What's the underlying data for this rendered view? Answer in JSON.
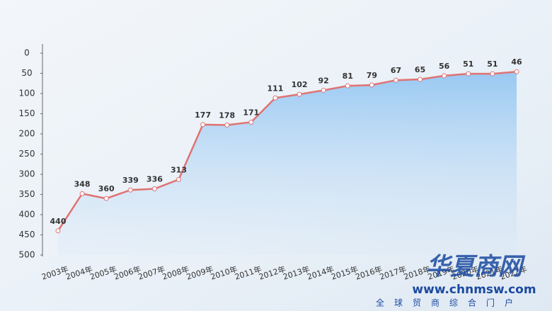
{
  "chart_data": {
    "type": "line",
    "categories": [
      "2003年",
      "2004年",
      "2005年",
      "2006年",
      "2007年",
      "2008年",
      "2009年",
      "2010年",
      "2011年",
      "2012年",
      "2013年",
      "2014年",
      "2015年",
      "2016年",
      "2017年",
      "2018年",
      "2019年",
      "2020年",
      "2021年",
      "2022年"
    ],
    "series": [
      {
        "color": "#e07272",
        "values": [
          440,
          348,
          360,
          339,
          336,
          313,
          177,
          178,
          171,
          111,
          102,
          92,
          81,
          79,
          67,
          65,
          56,
          51,
          51,
          46
        ]
      }
    ],
    "ylim": [
      0,
      500
    ],
    "yticks": [
      0,
      50,
      100,
      150,
      200,
      250,
      300,
      350,
      400,
      450,
      500
    ],
    "y_reversed": true,
    "area_fill": true
  },
  "watermark": {
    "brand": "华夏商网",
    "url": "www.chnmsw.com",
    "slogan": "全球贸商综合门户"
  }
}
